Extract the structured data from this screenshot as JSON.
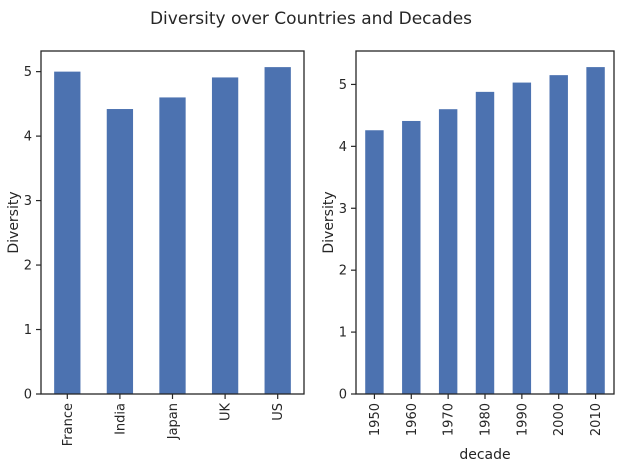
{
  "figure_title": "Diversity over Countries and Decades",
  "bar_color": "#4c72b0",
  "chart_data": [
    {
      "type": "bar",
      "categories": [
        "France",
        "India",
        "Japan",
        "UK",
        "US"
      ],
      "values": [
        5.0,
        4.42,
        4.6,
        4.91,
        5.07
      ],
      "xlabel": "",
      "ylabel": "Diversity",
      "ylim": [
        0,
        5.32
      ],
      "yticks": [
        0,
        1,
        2,
        3,
        4,
        5
      ],
      "grid": false
    },
    {
      "type": "bar",
      "categories": [
        "1950",
        "1960",
        "1970",
        "1980",
        "1990",
        "2000",
        "2010"
      ],
      "values": [
        4.26,
        4.41,
        4.6,
        4.88,
        5.03,
        5.15,
        5.28
      ],
      "xlabel": "decade",
      "ylabel": "Diversity",
      "ylim": [
        0,
        5.54
      ],
      "yticks": [
        0,
        1,
        2,
        3,
        4,
        5
      ],
      "grid": false
    }
  ]
}
